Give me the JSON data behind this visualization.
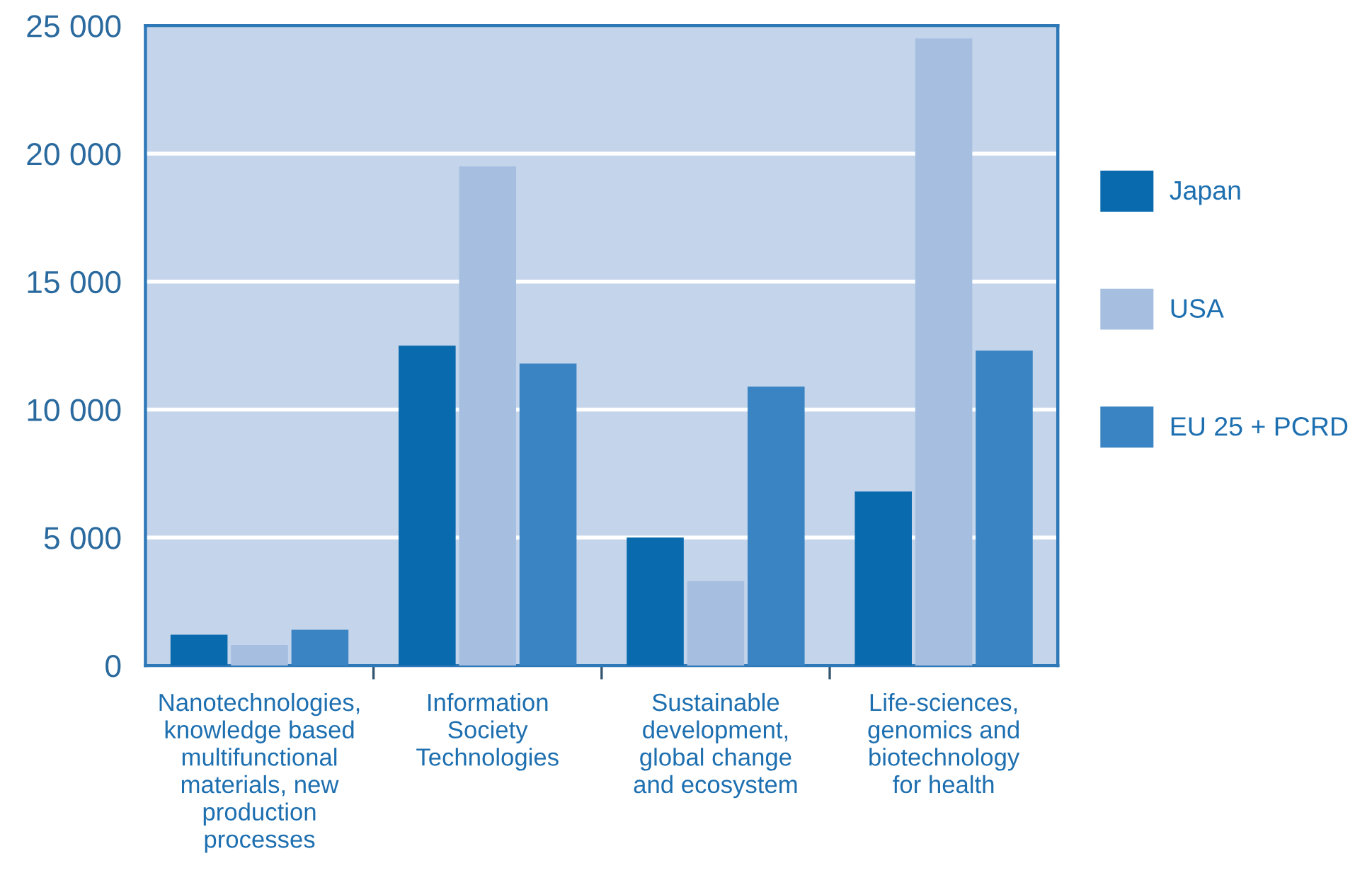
{
  "chart_data": {
    "type": "bar",
    "categories": [
      "Nanotechnologies,\nknowledge based\nmultifunctional\nmaterials, new\nproduction\nprocesses",
      "Information\nSociety\nTechnologies",
      "Sustainable\ndevelopment,\nglobal change\nand ecosystem",
      "Life-sciences,\ngenomics and\nbiotechnology\nfor health"
    ],
    "series": [
      {
        "name": "Japan",
        "color": "#0a6aae",
        "values": [
          1200,
          12500,
          5000,
          6800
        ]
      },
      {
        "name": "USA",
        "color": "#a6bfe0",
        "values": [
          800,
          19500,
          3300,
          24500
        ]
      },
      {
        "name": "EU 25 + PCRD",
        "color": "#3b84c3",
        "values": [
          1400,
          11800,
          10900,
          12300
        ]
      }
    ],
    "ylim": [
      0,
      25000
    ],
    "yticks": [
      0,
      {
        "value": 5000,
        "label": "5 000"
      },
      {
        "value": 10000,
        "label": "10 000"
      },
      {
        "value": 15000,
        "label": "15 000"
      },
      {
        "value": 20000,
        "label": "20 000"
      },
      {
        "value": 25000,
        "label": "25 000"
      }
    ],
    "grid": "y",
    "legend": "right"
  }
}
